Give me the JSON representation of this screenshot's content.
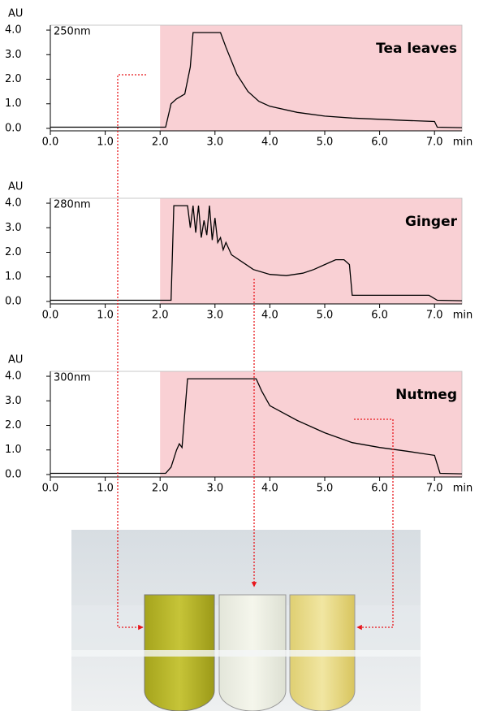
{
  "chart_data": [
    {
      "type": "line",
      "title": "Tea leaves",
      "annotation": "250nm",
      "y_label": "AU",
      "x_label": "min",
      "color": "#000000",
      "highlight": {
        "xlim": [
          2.0,
          7.5
        ],
        "color": "#f9d0d4"
      },
      "xlim": [
        0,
        7.5
      ],
      "ylim": [
        -0.1,
        4.2
      ],
      "xticks": [
        {
          "value": 0,
          "label": "0.0"
        },
        {
          "value": 1,
          "label": "1.0"
        },
        {
          "value": 2,
          "label": "2.0"
        },
        {
          "value": 3,
          "label": "3.0"
        },
        {
          "value": 4,
          "label": "4.0"
        },
        {
          "value": 5,
          "label": "5.0"
        },
        {
          "value": 6,
          "label": "6.0"
        },
        {
          "value": 7,
          "label": "7.0"
        }
      ],
      "yticks": [
        {
          "value": 0,
          "label": "0.0"
        },
        {
          "value": 1,
          "label": "1.0"
        },
        {
          "value": 2,
          "label": "2.0"
        },
        {
          "value": 3,
          "label": "3.0"
        },
        {
          "value": 4,
          "label": "4.0"
        }
      ],
      "x": [
        0,
        2.1,
        2.2,
        2.3,
        2.45,
        2.55,
        2.6,
        3.1,
        3.2,
        3.4,
        3.6,
        3.8,
        4.0,
        4.5,
        5.0,
        5.5,
        6.0,
        6.5,
        7.0,
        7.05,
        7.5
      ],
      "values": [
        0.05,
        0.05,
        1.0,
        1.2,
        1.4,
        2.5,
        3.9,
        3.9,
        3.3,
        2.2,
        1.5,
        1.1,
        0.9,
        0.65,
        0.5,
        0.42,
        0.37,
        0.32,
        0.28,
        0.05,
        0.03
      ]
    },
    {
      "type": "line",
      "title": "Ginger",
      "annotation": "280nm",
      "y_label": "AU",
      "x_label": "min",
      "color": "#000000",
      "highlight": {
        "xlim": [
          2.0,
          7.5
        ],
        "color": "#f9d0d4"
      },
      "xlim": [
        0,
        7.5
      ],
      "ylim": [
        -0.1,
        4.2
      ],
      "xticks": [
        {
          "value": 0,
          "label": "0.0"
        },
        {
          "value": 1,
          "label": "1.0"
        },
        {
          "value": 2,
          "label": "2.0"
        },
        {
          "value": 3,
          "label": "3.0"
        },
        {
          "value": 4,
          "label": "4.0"
        },
        {
          "value": 5,
          "label": "5.0"
        },
        {
          "value": 6,
          "label": "6.0"
        },
        {
          "value": 7,
          "label": "7.0"
        }
      ],
      "yticks": [
        {
          "value": 0,
          "label": "0.0"
        },
        {
          "value": 1,
          "label": "1.0"
        },
        {
          "value": 2,
          "label": "2.0"
        },
        {
          "value": 3,
          "label": "3.0"
        },
        {
          "value": 4,
          "label": "4.0"
        }
      ],
      "x": [
        0,
        2.2,
        2.25,
        2.5,
        2.55,
        2.6,
        2.65,
        2.7,
        2.75,
        2.8,
        2.85,
        2.9,
        2.95,
        3.0,
        3.05,
        3.1,
        3.15,
        3.2,
        3.3,
        3.5,
        3.7,
        4.0,
        4.3,
        4.6,
        4.8,
        5.0,
        5.2,
        5.35,
        5.45,
        5.5,
        6.0,
        6.9,
        7.05,
        7.5
      ],
      "values": [
        0.05,
        0.05,
        3.9,
        3.9,
        3.0,
        3.9,
        2.8,
        3.9,
        2.6,
        3.3,
        2.7,
        3.9,
        2.5,
        3.4,
        2.4,
        2.6,
        2.1,
        2.4,
        1.9,
        1.6,
        1.3,
        1.1,
        1.05,
        1.15,
        1.3,
        1.5,
        1.7,
        1.7,
        1.5,
        0.25,
        0.25,
        0.25,
        0.05,
        0.03
      ]
    },
    {
      "type": "line",
      "title": "Nutmeg",
      "annotation": "300nm",
      "y_label": "AU",
      "x_label": "min",
      "color": "#000000",
      "highlight": {
        "xlim": [
          2.0,
          7.5
        ],
        "color": "#f9d0d4"
      },
      "xlim": [
        0,
        7.5
      ],
      "ylim": [
        -0.1,
        4.2
      ],
      "xticks": [
        {
          "value": 0,
          "label": "0.0"
        },
        {
          "value": 1,
          "label": "1.0"
        },
        {
          "value": 2,
          "label": "2.0"
        },
        {
          "value": 3,
          "label": "3.0"
        },
        {
          "value": 4,
          "label": "4.0"
        },
        {
          "value": 5,
          "label": "5.0"
        },
        {
          "value": 6,
          "label": "6.0"
        },
        {
          "value": 7,
          "label": "7.0"
        }
      ],
      "yticks": [
        {
          "value": 0,
          "label": "0.0"
        },
        {
          "value": 1,
          "label": "1.0"
        },
        {
          "value": 2,
          "label": "2.0"
        },
        {
          "value": 3,
          "label": "3.0"
        },
        {
          "value": 4,
          "label": "4.0"
        }
      ],
      "x": [
        0,
        2.1,
        2.2,
        2.3,
        2.35,
        2.4,
        2.5,
        3.75,
        3.85,
        4.0,
        4.5,
        5.0,
        5.5,
        6.0,
        6.5,
        7.0,
        7.1,
        7.5
      ],
      "values": [
        0.05,
        0.05,
        0.3,
        1.0,
        1.25,
        1.1,
        3.9,
        3.9,
        3.4,
        2.8,
        2.2,
        1.7,
        1.3,
        1.1,
        0.95,
        0.78,
        0.05,
        0.03
      ]
    }
  ]
}
